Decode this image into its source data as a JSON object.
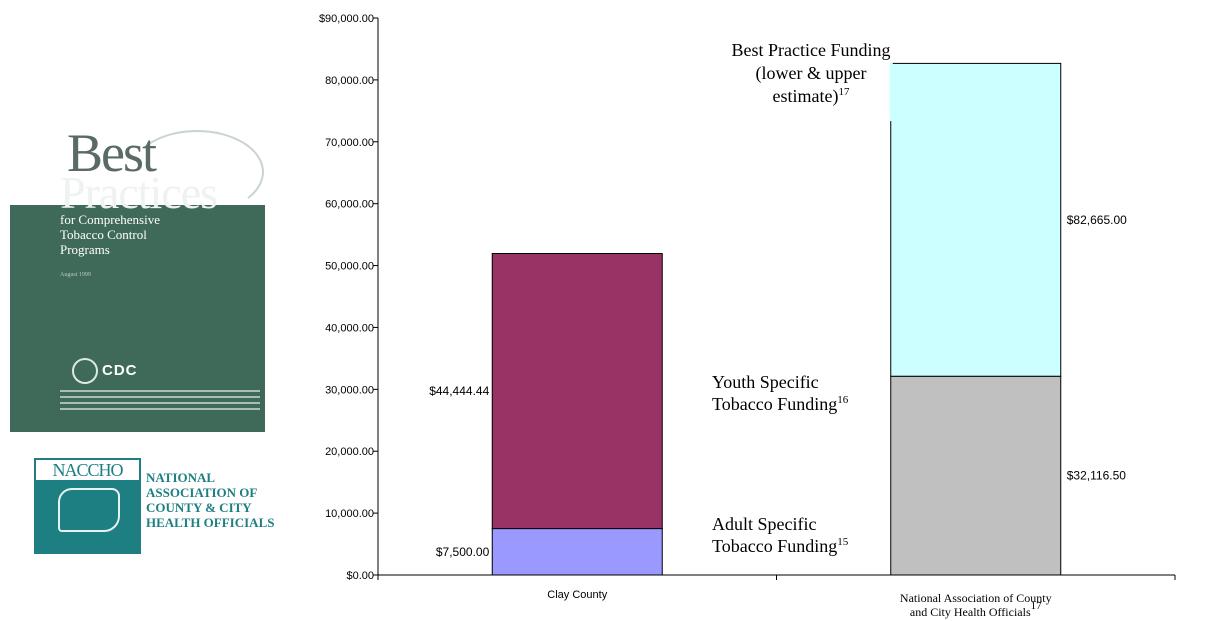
{
  "cover": {
    "title_line1": "Best",
    "title_line2": "Practices",
    "subtitle_lines": [
      "for Comprehensive",
      "Tobacco Control",
      "Programs"
    ],
    "date": "August 1999",
    "agency": "CDC"
  },
  "naccho": {
    "acronym": "NACCHO",
    "name_lines": [
      "NATIONAL",
      "ASSOCIATION OF",
      "COUNTY & CITY",
      "HEALTH OFFICIALS"
    ]
  },
  "chart_data": {
    "type": "bar",
    "stacked": true,
    "ylim": [
      0,
      90000
    ],
    "yticks": [
      0,
      10000,
      20000,
      30000,
      40000,
      50000,
      60000,
      70000,
      80000,
      90000
    ],
    "ytick_labels": [
      "$0.00",
      "10,000.00",
      "20,000.00",
      "30,000.00",
      "40,000.00",
      "50,000.00",
      "60,000.00",
      "70,000.00",
      "80,000.00",
      "$90,000.00"
    ],
    "categories": [
      "Clay County",
      "National Association of County and City Health Officials"
    ],
    "category_label_lines": [
      [
        {
          "text": "Clay County"
        }
      ],
      [
        {
          "text": "National Association of County"
        },
        {
          "text": "and City Health Officials",
          "sup": "17"
        }
      ]
    ],
    "bars": [
      {
        "category": "Clay County",
        "segments": [
          {
            "value": 7500,
            "label": "$7,500.00",
            "color": "#9999ff"
          },
          {
            "value": 44444.44,
            "label": "$44,444.44",
            "color": "#993366"
          }
        ]
      },
      {
        "category": "National Association of County and City Health Officials",
        "segments": [
          {
            "value": 32116.5,
            "label": "$32,116.50",
            "color": "#c0c0c0"
          },
          {
            "value": 50548.5,
            "label": "$82,665.00",
            "color": "#ccffff"
          }
        ]
      }
    ],
    "annotations": [
      {
        "lines": [
          {
            "text": "Adult Specific"
          },
          {
            "text": "Tobacco Funding",
            "sup": "15"
          }
        ]
      },
      {
        "lines": [
          {
            "text": "Youth Specific"
          },
          {
            "text": "Tobacco Funding",
            "sup": "16"
          }
        ]
      },
      {
        "lines": [
          {
            "text": "Best Practice Funding"
          },
          {
            "text": "(lower & upper"
          },
          {
            "text": "estimate)",
            "sup": "17"
          }
        ]
      }
    ]
  }
}
